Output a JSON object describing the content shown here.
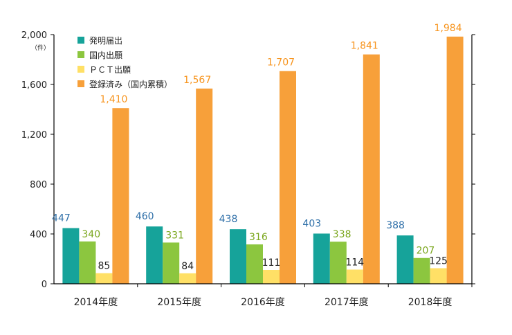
{
  "chart_data": {
    "type": "bar",
    "categories": [
      "2014年度",
      "2015年度",
      "2016年度",
      "2017年度",
      "2018年度"
    ],
    "series": [
      {
        "name": "発明届出",
        "color": "#16a39a",
        "label_color": "#2e6fa8",
        "values": [
          447,
          460,
          438,
          403,
          388
        ]
      },
      {
        "name": "国内出願",
        "color": "#8cc63f",
        "label_color": "#7aa61c",
        "values": [
          340,
          331,
          316,
          338,
          207
        ]
      },
      {
        "name": "ＰＣＴ出願",
        "color": "#ffe066",
        "label_color": "#222222",
        "values": [
          85,
          84,
          111,
          114,
          125
        ]
      },
      {
        "name": "登録済み（国内累積）",
        "color": "#f7a03a",
        "label_color": "#f7941d",
        "values": [
          1410,
          1567,
          1707,
          1841,
          1984
        ]
      }
    ],
    "data_labels": [
      [
        "447",
        "460",
        "438",
        "403",
        "388"
      ],
      [
        "340",
        "331",
        "316",
        "338",
        "207"
      ],
      [
        "85",
        "84",
        "111",
        "114",
        "125"
      ],
      [
        "1,410",
        "1,567",
        "1,707",
        "1,841",
        "1,984"
      ]
    ],
    "y_ticks": [
      0,
      400,
      800,
      1200,
      1600,
      2000
    ],
    "y_tick_labels": [
      "0",
      "400",
      "800",
      "1,200",
      "1,600",
      "2,000"
    ],
    "y_unit": "（件）",
    "ylim": [
      0,
      2000
    ],
    "grid": false,
    "legend_position": "top-left",
    "title": "",
    "xlabel": "",
    "ylabel": ""
  }
}
